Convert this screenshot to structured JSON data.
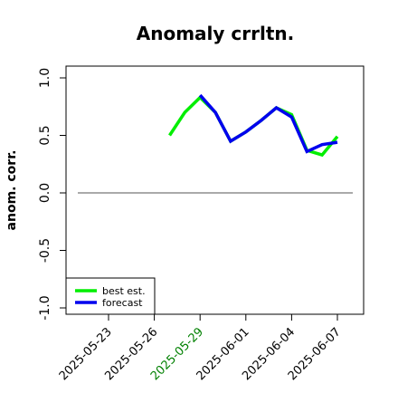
{
  "chart_data": {
    "type": "line",
    "title": "Anomaly crrltn.",
    "xlabel": "",
    "ylabel": "anom. corr.",
    "ylim": [
      -1.05,
      1.05
    ],
    "xlim": [
      "2025-05-21",
      "2025-06-08"
    ],
    "y_ticks": [
      1.0,
      0.5,
      0.0,
      -0.5,
      -1.0
    ],
    "y_tick_labels": [
      "1.0",
      "0.5",
      "0.0",
      "-0.5",
      "-1.0"
    ],
    "x_ticks": [
      "2025-05-23",
      "2025-05-26",
      "2025-05-29",
      "2025-06-01",
      "2025-06-04",
      "2025-06-07"
    ],
    "x_tick_labels": [
      "2025-05-23",
      "2025-05-26",
      "2025-05-29",
      "2025-06-01",
      "2025-06-04",
      "2025-06-07"
    ],
    "highlighted_tick": "2025-05-29",
    "highlight_color": "#008000",
    "reference_line": 0.0,
    "grid": false,
    "legend_position": "bottom-left",
    "series": [
      {
        "name": "best est.",
        "color": "#00ee00",
        "x": [
          "2025-05-27",
          "2025-05-28",
          "2025-05-29",
          "2025-05-30",
          "2025-05-31",
          "2025-06-01",
          "2025-06-02",
          "2025-06-03",
          "2025-06-04",
          "2025-06-05",
          "2025-06-06",
          "2025-06-07"
        ],
        "y": [
          0.5,
          0.7,
          0.83,
          0.7,
          0.45,
          0.53,
          0.63,
          0.74,
          0.68,
          0.37,
          0.33,
          0.49
        ]
      },
      {
        "name": "forecast",
        "color": "#0000ee",
        "x": [
          "2025-05-29",
          "2025-05-30",
          "2025-05-31",
          "2025-06-01",
          "2025-06-02",
          "2025-06-03",
          "2025-06-04",
          "2025-06-05",
          "2025-06-06",
          "2025-06-07"
        ],
        "y": [
          0.85,
          0.7,
          0.45,
          0.53,
          0.63,
          0.74,
          0.66,
          0.36,
          0.42,
          0.44
        ]
      }
    ]
  }
}
